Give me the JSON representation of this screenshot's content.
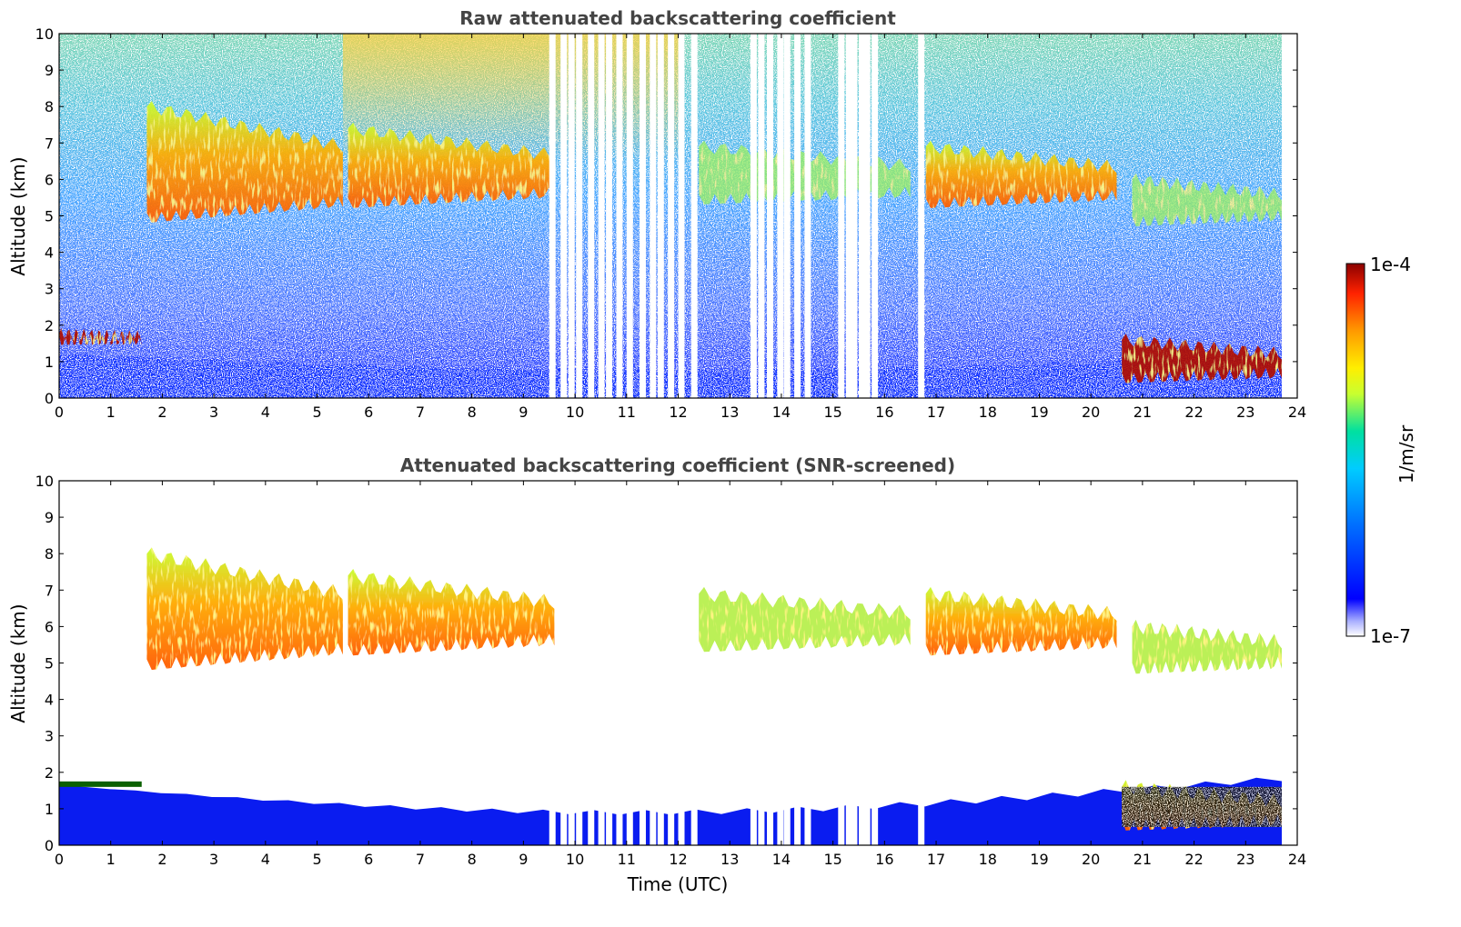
{
  "figure": {
    "colorbar": {
      "label": "1/m/sr",
      "max_label": "1e-4",
      "min_label": "1e-7",
      "scale": "log",
      "range": [
        1e-07,
        0.0001
      ],
      "colormap": "jet",
      "colors": [
        "#ffffff",
        "#0000ff",
        "#00ccff",
        "#00e0a0",
        "#c8ff30",
        "#ffee00",
        "#ff9900",
        "#ff3300",
        "#8b0000"
      ]
    },
    "xlabel": "Time (UTC)"
  },
  "chart_data": [
    {
      "type": "heatmap",
      "title": "Raw attenuated backscattering coefficient",
      "ylabel": "Altitude (km)",
      "xlabel": "",
      "xlim": [
        0,
        24
      ],
      "ylim": [
        0,
        10
      ],
      "xticks": [
        "0",
        "1",
        "2",
        "3",
        "4",
        "5",
        "6",
        "7",
        "8",
        "9",
        "10",
        "11",
        "12",
        "13",
        "14",
        "15",
        "16",
        "17",
        "18",
        "19",
        "20",
        "21",
        "22",
        "23",
        "24"
      ],
      "yticks": [
        "0",
        "1",
        "2",
        "3",
        "4",
        "5",
        "6",
        "7",
        "8",
        "9",
        "10"
      ],
      "data_extent_hours": [
        0,
        23.7
      ],
      "missing_data_hours": [
        9.5,
        9.72,
        9.87,
        10.02,
        10.25,
        10.45,
        10.6,
        10.8,
        11.0,
        11.25,
        11.45,
        11.6,
        11.8,
        12.0,
        12.25,
        13.4,
        13.55,
        13.72,
        13.92,
        14.05,
        14.25,
        14.45,
        15.1,
        15.25,
        15.35,
        15.5,
        15.6,
        15.75,
        16.65
      ],
      "features": [
        {
          "name": "aerosol layer",
          "t_start": 0,
          "t_end": 23.7,
          "alt_bottom": 0,
          "alt_top": 1.2,
          "level": "low"
        },
        {
          "name": "cloud at 1.6 km",
          "t_start": 0,
          "t_end": 1.6,
          "alt_bottom": 1.55,
          "alt_top": 1.75,
          "level": "very high"
        },
        {
          "name": "cirrus",
          "t_start": 1.7,
          "t_end": 5.5,
          "alt_bottom": 4.9,
          "alt_top": 8.0,
          "level": "high"
        },
        {
          "name": "cirrus",
          "t_start": 5.6,
          "t_end": 9.6,
          "alt_bottom": 5.3,
          "alt_top": 7.4,
          "level": "high"
        },
        {
          "name": "cirrus",
          "t_start": 12.4,
          "t_end": 16.5,
          "alt_bottom": 5.4,
          "alt_top": 6.9,
          "level": "medium"
        },
        {
          "name": "cirrus",
          "t_start": 16.8,
          "t_end": 20.5,
          "alt_bottom": 5.3,
          "alt_top": 6.9,
          "level": "high"
        },
        {
          "name": "cirrus",
          "t_start": 20.8,
          "t_end": 23.7,
          "alt_bottom": 4.8,
          "alt_top": 6.0,
          "level": "medium"
        },
        {
          "name": "low cloud",
          "t_start": 20.6,
          "t_end": 23.7,
          "alt_bottom": 0.5,
          "alt_top": 1.6,
          "level": "very high"
        }
      ]
    },
    {
      "type": "heatmap",
      "title": "Attenuated backscattering coefficient (SNR-screened)",
      "ylabel": "Altitude (km)",
      "xlabel": "Time (UTC)",
      "xlim": [
        0,
        24
      ],
      "ylim": [
        0,
        10
      ],
      "xticks": [
        "0",
        "1",
        "2",
        "3",
        "4",
        "5",
        "6",
        "7",
        "8",
        "9",
        "10",
        "11",
        "12",
        "13",
        "14",
        "15",
        "16",
        "17",
        "18",
        "19",
        "20",
        "21",
        "22",
        "23",
        "24"
      ],
      "yticks": [
        "0",
        "1",
        "2",
        "3",
        "4",
        "5",
        "6",
        "7",
        "8",
        "9",
        "10"
      ],
      "data_extent_hours": [
        0,
        23.7
      ],
      "screened": true
    }
  ]
}
